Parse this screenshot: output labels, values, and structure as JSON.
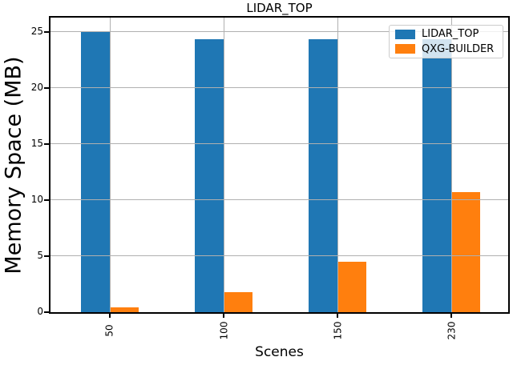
{
  "chart_data": {
    "type": "bar",
    "title": "LIDAR_TOP",
    "xlabel": "Scenes",
    "ylabel": "Memory Space (MB)",
    "categories": [
      "50",
      "100",
      "150",
      "230"
    ],
    "series": [
      {
        "name": "LIDAR_TOP",
        "color": "#1f77b4",
        "values": [
          25.0,
          24.3,
          24.3,
          24.3
        ]
      },
      {
        "name": "QXG-BUILDER",
        "color": "#ff7f0e",
        "values": [
          0.45,
          1.8,
          4.5,
          10.7
        ]
      }
    ],
    "yticks": [
      0,
      5,
      10,
      15,
      20,
      25
    ],
    "ylim": [
      0,
      26.25
    ],
    "grid": true,
    "grid_color": "#b0b0b0",
    "spine_color": "#000000",
    "background_color": "#ffffff",
    "legend_position": "upper-right",
    "xtick_rotation_deg": 90
  }
}
